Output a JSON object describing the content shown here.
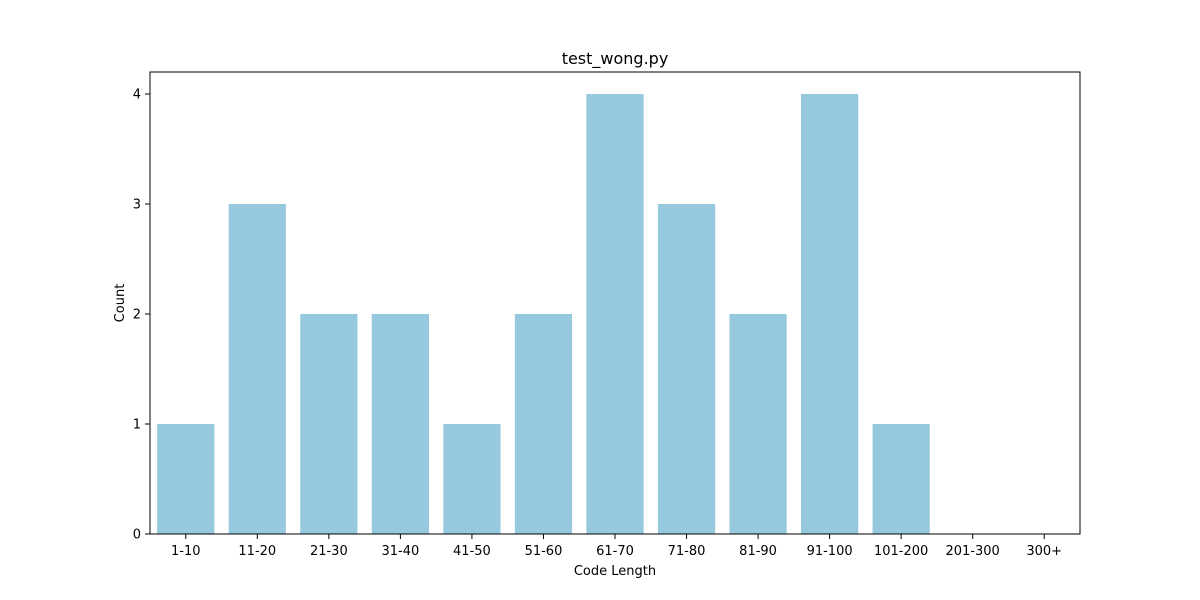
{
  "chart_data": {
    "type": "bar",
    "title": "test_wong.py",
    "xlabel": "Code Length",
    "ylabel": "Count",
    "categories": [
      "1-10",
      "11-20",
      "21-30",
      "31-40",
      "41-50",
      "51-60",
      "61-70",
      "71-80",
      "81-90",
      "91-100",
      "101-200",
      "201-300",
      "300+"
    ],
    "values": [
      1,
      3,
      2,
      2,
      1,
      2,
      4,
      3,
      2,
      4,
      1,
      0,
      0
    ],
    "ylim": [
      0,
      4.2
    ],
    "yticks": [
      0,
      1,
      2,
      3,
      4
    ],
    "bar_color": "#96c9de",
    "grid": false,
    "legend": "none"
  }
}
